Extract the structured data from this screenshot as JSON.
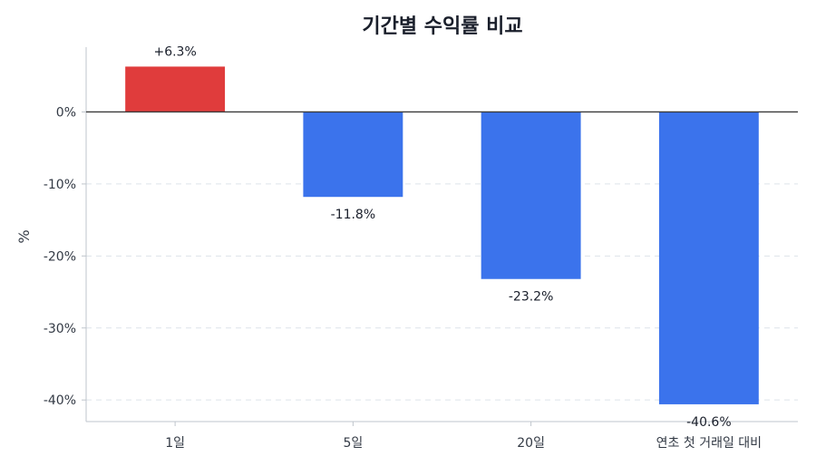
{
  "chart_data": {
    "type": "bar",
    "title": "기간별 수익률 비교",
    "xlabel": "",
    "ylabel": "%",
    "categories": [
      "1일",
      "5일",
      "20일",
      "연초 첫 거래일 대비"
    ],
    "values": [
      6.3,
      -11.8,
      -23.2,
      -40.6
    ],
    "data_labels": [
      "+6.3%",
      "-11.8%",
      "-23.2%",
      "-40.6%"
    ],
    "ylim": [
      -43,
      9
    ],
    "yticks": [
      0,
      -10,
      -20,
      -30,
      -40
    ],
    "ytick_labels": [
      "0%",
      "-10%",
      "-20%",
      "-30%",
      "-40%"
    ],
    "grid": "horizontal-dashed",
    "legend": "none",
    "colors": {
      "positive": "#e03c3c",
      "negative": "#3b73ec",
      "zero_line": "#3a3a3a",
      "grid": "#dde3ea",
      "axis": "#bfc5cc"
    }
  }
}
